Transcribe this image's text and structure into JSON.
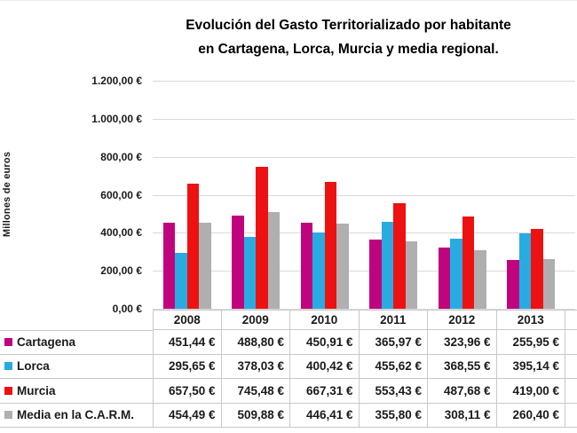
{
  "chart_data": {
    "type": "bar",
    "title": "Evolución del Gasto Territorializado por habitante en Cartagena, Lorca, Murcia y media regional.",
    "title_line1": "Evolución del Gasto Territorializado por habitante",
    "title_line2": "en Cartagena, Lorca, Murcia y media regional.",
    "ylabel": "Millones de euros",
    "xlabel": "",
    "ylim": [
      0,
      1200
    ],
    "grid": true,
    "legend_position": "table-left-column",
    "y_ticks": [
      {
        "label": "1.200,00 €",
        "value": 1200
      },
      {
        "label": "1.000,00 €",
        "value": 1000
      },
      {
        "label": "800,00 €",
        "value": 800
      },
      {
        "label": "600,00 €",
        "value": 600
      },
      {
        "label": "400,00 €",
        "value": 400
      },
      {
        "label": "200,00 €",
        "value": 200
      },
      {
        "label": "0,00 €",
        "value": 0
      }
    ],
    "categories": [
      "2008",
      "2009",
      "2010",
      "2011",
      "2012",
      "2013"
    ],
    "series": [
      {
        "name": "Cartagena",
        "color": "#C0047E",
        "values": [
          451.44,
          488.8,
          450.91,
          365.97,
          323.96,
          255.95
        ],
        "display": [
          "451,44 €",
          "488,80 €",
          "450,91 €",
          "365,97 €",
          "323,96 €",
          "255,95 €"
        ]
      },
      {
        "name": "Lorca",
        "color": "#29ABE2",
        "values": [
          295.65,
          378.03,
          400.42,
          455.62,
          368.55,
          395.14
        ],
        "display": [
          "295,65 €",
          "378,03 €",
          "400,42 €",
          "455,62 €",
          "368,55 €",
          "395,14 €"
        ]
      },
      {
        "name": "Murcia",
        "color": "#EE1111",
        "values": [
          657.5,
          745.48,
          667.31,
          553.43,
          487.68,
          419.0
        ],
        "display": [
          "657,50 €",
          "745,48 €",
          "667,31 €",
          "553,43 €",
          "487,68 €",
          "419,00 €"
        ]
      },
      {
        "name": "Media en la C.A.R.M.",
        "color": "#AFAFAF",
        "values": [
          454.49,
          509.88,
          446.41,
          355.8,
          308.11,
          260.4
        ],
        "display": [
          "454,49 €",
          "509,88 €",
          "446,41 €",
          "355,80 €",
          "308,11 €",
          "260,40 €"
        ]
      }
    ],
    "colors": {
      "gridline": "#d9d9d9",
      "table_border": "#c9c9c9",
      "text": "#1a1a1a"
    }
  }
}
